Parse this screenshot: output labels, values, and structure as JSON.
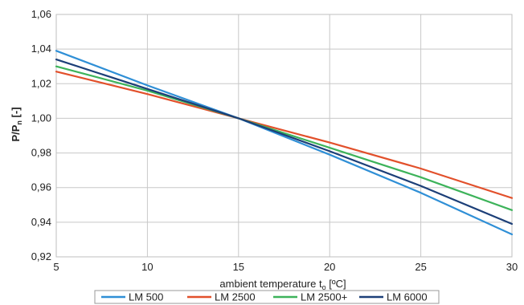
{
  "chart_data": {
    "type": "line",
    "title": "",
    "xlabel": {
      "main": "ambient temperature  t",
      "sub": "o",
      "unit": "  [ºC]"
    },
    "ylabel": {
      "main": "P/P",
      "sub": "n",
      "unit": " [-]"
    },
    "xlim": [
      5,
      30
    ],
    "ylim": [
      0.92,
      1.06
    ],
    "xticks": [
      5,
      10,
      15,
      20,
      25,
      30
    ],
    "xtick_labels": [
      "5",
      "10",
      "15",
      "20",
      "25",
      "30"
    ],
    "yticks": [
      0.92,
      0.94,
      0.96,
      0.98,
      1.0,
      1.02,
      1.04,
      1.06
    ],
    "ytick_labels": [
      "0,92",
      "0,94",
      "0,96",
      "0,98",
      "1,00",
      "1,02",
      "1,04",
      "1,06"
    ],
    "grid": true,
    "legend_position": "bottom",
    "x": [
      5,
      10,
      15,
      20,
      25,
      30
    ],
    "series": [
      {
        "name": "LM 500",
        "color": "#2f8fd6",
        "values": [
          1.039,
          1.019,
          1.0,
          0.979,
          0.957,
          0.933
        ]
      },
      {
        "name": "LM 2500",
        "color": "#e2502b",
        "values": [
          1.027,
          1.014,
          1.0,
          0.986,
          0.971,
          0.954
        ]
      },
      {
        "name": "LM 2500+",
        "color": "#3db35a",
        "values": [
          1.03,
          1.016,
          1.0,
          0.983,
          0.966,
          0.947
        ]
      },
      {
        "name": "LM 6000",
        "color": "#1c3f78",
        "values": [
          1.034,
          1.017,
          1.0,
          0.981,
          0.961,
          0.939
        ]
      }
    ]
  }
}
